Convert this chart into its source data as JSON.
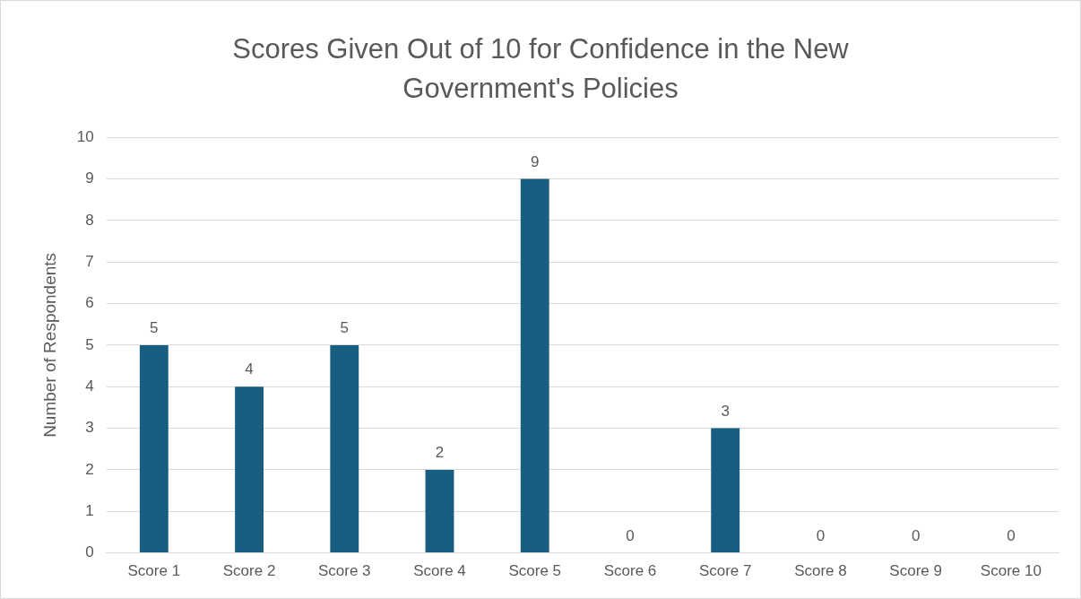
{
  "chart_data": {
    "type": "bar",
    "title": "Scores Given Out of 10 for Confidence in the New Government's Policies",
    "ylabel": "Number of Respondents",
    "categories": [
      "Score 1",
      "Score 2",
      "Score 3",
      "Score 4",
      "Score 5",
      "Score 6",
      "Score 7",
      "Score 8",
      "Score 9",
      "Score 10"
    ],
    "values": [
      5,
      4,
      5,
      2,
      9,
      0,
      3,
      0,
      0,
      0
    ],
    "color": "#175e81",
    "ylim": [
      0,
      10
    ],
    "yticks": [
      0,
      1,
      2,
      3,
      4,
      5,
      6,
      7,
      8,
      9,
      10
    ],
    "grid": "y",
    "legend": false,
    "data_labels": true
  }
}
